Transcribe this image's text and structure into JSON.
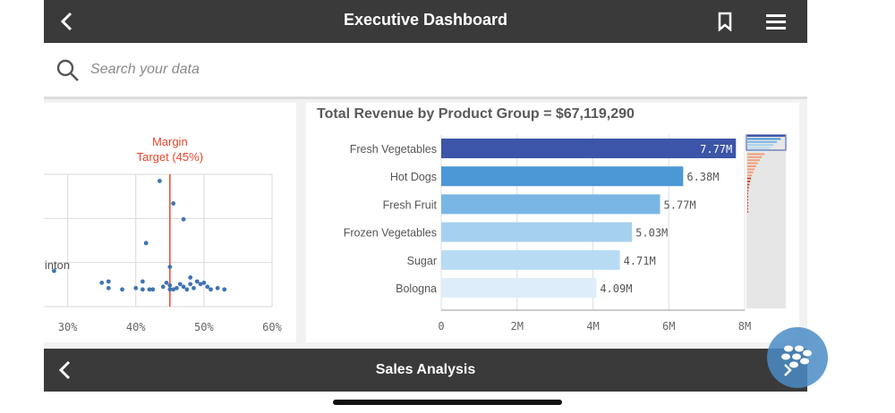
{
  "header": {
    "title": "Executive Dashboard"
  },
  "search": {
    "placeholder": "Search your data"
  },
  "footer": {
    "title": "Sales Analysis"
  },
  "colors": {
    "bar_bg": "#3a3a3a",
    "accent_red": "#e8462b",
    "dot": "#3f74b0"
  },
  "scatter": {
    "chart_data": {
      "type": "scatter",
      "reference_label": [
        "Margin",
        "Target (45%)"
      ],
      "reference_x": 45,
      "x_tick_labels": [
        "30%",
        "40%",
        "50%",
        "60%"
      ],
      "x_ticks": [
        30,
        40,
        50,
        60
      ],
      "xlim": [
        26.5,
        60
      ],
      "ylim": [
        0,
        100
      ],
      "partial_label": "linton",
      "points": [
        [
          28,
          27
        ],
        [
          35,
          18
        ],
        [
          36,
          19
        ],
        [
          36,
          14
        ],
        [
          38,
          13
        ],
        [
          40,
          14
        ],
        [
          41,
          13
        ],
        [
          42,
          13
        ],
        [
          41,
          19
        ],
        [
          41.5,
          48
        ],
        [
          43.5,
          95
        ],
        [
          44,
          15
        ],
        [
          45,
          13
        ],
        [
          45.5,
          13
        ],
        [
          45,
          16
        ],
        [
          44.5,
          18
        ],
        [
          45,
          30
        ],
        [
          45.5,
          78
        ],
        [
          46,
          14
        ],
        [
          46.5,
          17
        ],
        [
          47,
          66
        ],
        [
          47,
          15
        ],
        [
          47.5,
          13
        ],
        [
          48,
          17
        ],
        [
          48.5,
          14
        ],
        [
          48,
          22
        ],
        [
          49,
          19
        ],
        [
          49.5,
          17
        ],
        [
          50,
          18
        ],
        [
          50.5,
          15
        ],
        [
          51,
          13
        ],
        [
          52,
          14
        ],
        [
          53,
          13
        ],
        [
          42.5,
          13
        ]
      ]
    }
  },
  "bar": {
    "chart_data": {
      "type": "bar",
      "orientation": "horizontal",
      "title": "Total Revenue by Product Group = $67,119,290",
      "categories": [
        "Fresh Vegetables",
        "Hot Dogs",
        "Fresh Fruit",
        "Frozen Vegetables",
        "Sugar",
        "Bologna"
      ],
      "values": [
        7.77,
        6.38,
        5.77,
        5.03,
        4.71,
        4.09
      ],
      "value_labels": [
        "7.77M",
        "6.38M",
        "5.77M",
        "5.03M",
        "4.71M",
        "4.09M"
      ],
      "colors": [
        "#3d55a8",
        "#4c97d6",
        "#79b6e6",
        "#a6d0f0",
        "#b8dbf4",
        "#ddeefa"
      ],
      "x_ticks": [
        0,
        2,
        4,
        6,
        8
      ],
      "x_tick_labels": [
        "0",
        "2M",
        "4M",
        "6M",
        "8M"
      ],
      "xlim": [
        0,
        8
      ]
    }
  }
}
